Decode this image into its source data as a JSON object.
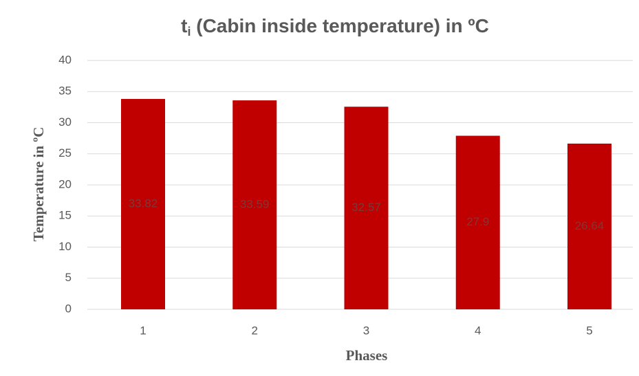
{
  "chart_data": {
    "type": "bar",
    "title": [
      "t",
      "i",
      " (Cabin inside temperature) in ºC"
    ],
    "x_label": "Phases",
    "y_label": "Temperature in ºC",
    "categories": [
      "1",
      "2",
      "3",
      "4",
      "5"
    ],
    "values": [
      33.82,
      33.59,
      32.57,
      27.9,
      26.64
    ],
    "color": "#c00000",
    "ylim": [
      0,
      40
    ],
    "yticks": [
      0,
      5,
      10,
      15,
      20,
      25,
      30,
      35,
      40
    ],
    "grid": true
  }
}
